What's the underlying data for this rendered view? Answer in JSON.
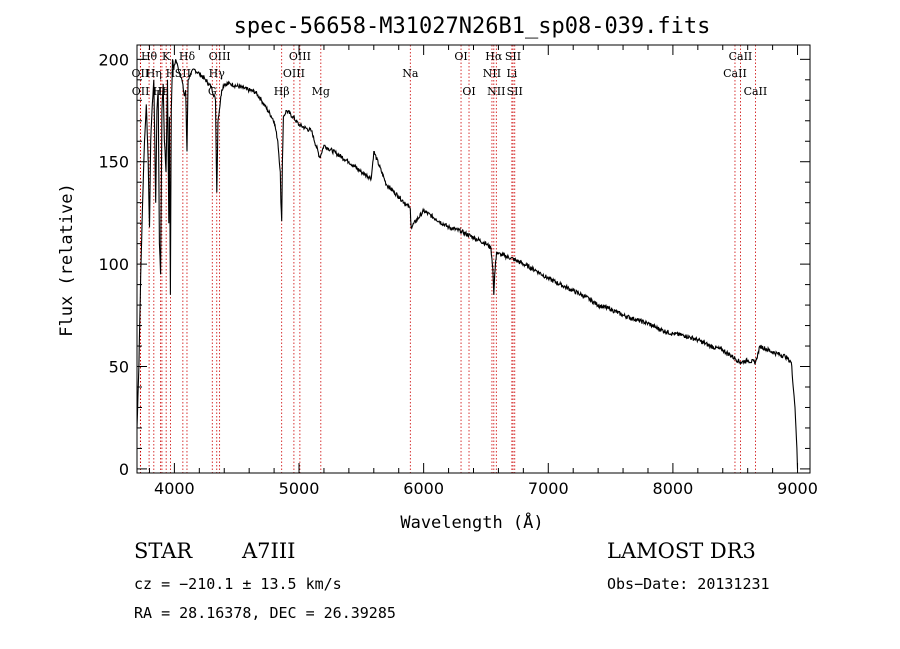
{
  "chart_data": {
    "type": "line",
    "title": "spec-56658-M31027N26B1_sp08-039.fits",
    "xlabel": "Wavelength (Å)",
    "ylabel": "Flux (relative)",
    "xlim": [
      3700,
      9100
    ],
    "ylim": [
      -2,
      207
    ],
    "x_ticks": [
      4000,
      5000,
      6000,
      7000,
      8000,
      9000
    ],
    "y_ticks": [
      0,
      50,
      100,
      150,
      200
    ],
    "spectrum": {
      "x": [
        3700,
        3715,
        3730,
        3745,
        3760,
        3775,
        3790,
        3800,
        3810,
        3820,
        3835,
        3850,
        3860,
        3870,
        3880,
        3889,
        3900,
        3910,
        3920,
        3933,
        3945,
        3955,
        3960,
        3968,
        3975,
        3985,
        3995,
        4010,
        4030,
        4060,
        4080,
        4090,
        4101,
        4110,
        4130,
        4160,
        4200,
        4250,
        4300,
        4330,
        4340,
        4350,
        4380,
        4400,
        4450,
        4500,
        4550,
        4600,
        4650,
        4700,
        4750,
        4800,
        4830,
        4850,
        4855,
        4861,
        4867,
        4875,
        4900,
        4950,
        5000,
        5100,
        5167,
        5200,
        5300,
        5400,
        5500,
        5580,
        5600,
        5700,
        5800,
        5893,
        5900,
        6000,
        6100,
        6200,
        6300,
        6400,
        6500,
        6540,
        6555,
        6563,
        6570,
        6585,
        6600,
        6700,
        6800,
        6900,
        7000,
        7100,
        7200,
        7300,
        7400,
        7500,
        7600,
        7700,
        7800,
        7900,
        8000,
        8100,
        8200,
        8300,
        8400,
        8498,
        8542,
        8600,
        8662,
        8700,
        8800,
        8900,
        8950,
        8980,
        8995,
        9000
      ],
      "y": [
        20,
        50,
        95,
        130,
        160,
        178,
        150,
        118,
        160,
        175,
        190,
        130,
        175,
        185,
        110,
        95,
        175,
        188,
        160,
        145,
        190,
        120,
        172,
        85,
        175,
        200,
        195,
        200,
        196,
        190,
        182,
        185,
        155,
        190,
        193,
        195,
        193,
        190,
        186,
        180,
        135,
        170,
        185,
        188,
        188,
        187,
        186,
        185,
        184,
        180,
        175,
        170,
        160,
        145,
        130,
        121,
        150,
        172,
        175,
        172,
        168,
        165,
        152,
        158,
        154,
        150,
        145,
        142,
        155,
        139,
        133,
        127,
        118,
        126,
        122,
        118,
        116,
        113,
        110,
        108,
        98,
        85,
        95,
        106,
        105,
        103,
        100,
        97,
        93,
        90,
        87,
        84,
        80,
        78,
        75,
        73,
        71,
        68,
        66,
        65,
        63,
        60,
        58,
        54,
        52,
        53,
        52,
        60,
        57,
        55,
        52,
        30,
        10,
        0
      ]
    },
    "lines": [
      {
        "label": "Hθ",
        "x": 3797,
        "row": 0
      },
      {
        "label": "OII",
        "x": 3727,
        "row": 1
      },
      {
        "label": "OII",
        "x": 3729,
        "row": 2
      },
      {
        "label": "Hη",
        "x": 3835,
        "row": 1
      },
      {
        "label": "Hε",
        "x": 3889,
        "row": 2
      },
      {
        "label": "K",
        "x": 3934,
        "row": 0
      },
      {
        "label": "H",
        "x": 3968,
        "row": 1
      },
      {
        "label": "SII",
        "x": 4068,
        "row": 1
      },
      {
        "label": "Hδ",
        "x": 4101,
        "row": 0
      },
      {
        "label": "II",
        "x": 3900,
        "row": 2
      },
      {
        "label": "OIII",
        "x": 4363,
        "row": 0
      },
      {
        "label": "Hγ",
        "x": 4340,
        "row": 1
      },
      {
        "label": "G",
        "x": 4304,
        "row": 2
      },
      {
        "label": "Hβ",
        "x": 4861,
        "row": 2
      },
      {
        "label": "OIII",
        "x": 5007,
        "row": 0
      },
      {
        "label": "OIII",
        "x": 4959,
        "row": 1
      },
      {
        "label": "Mg",
        "x": 5175,
        "row": 2
      },
      {
        "label": "Na",
        "x": 5893,
        "row": 1
      },
      {
        "label": "OI",
        "x": 6300,
        "row": 0
      },
      {
        "label": "OI",
        "x": 6364,
        "row": 2
      },
      {
        "label": "Hα",
        "x": 6563,
        "row": 0
      },
      {
        "label": "NII",
        "x": 6548,
        "row": 1
      },
      {
        "label": "NII",
        "x": 6583,
        "row": 2
      },
      {
        "label": "SII",
        "x": 6717,
        "row": 0
      },
      {
        "label": "Li",
        "x": 6708,
        "row": 1
      },
      {
        "label": "SII",
        "x": 6731,
        "row": 2
      },
      {
        "label": "CaII",
        "x": 8542,
        "row": 0
      },
      {
        "label": "CaII",
        "x": 8498,
        "row": 1
      },
      {
        "label": "CaII",
        "x": 8662,
        "row": 2
      }
    ],
    "colors": {
      "spectrum": "#000000",
      "lines": "#cc0000"
    }
  },
  "info": {
    "class_label": "STAR",
    "subclass": "A7III",
    "survey": "LAMOST DR3",
    "cz": "cz = −210.1 ± 13.5 km/s",
    "obs_date": "Obs−Date: 20131231",
    "coords": "RA =  28.16378, DEC =  26.39285"
  }
}
